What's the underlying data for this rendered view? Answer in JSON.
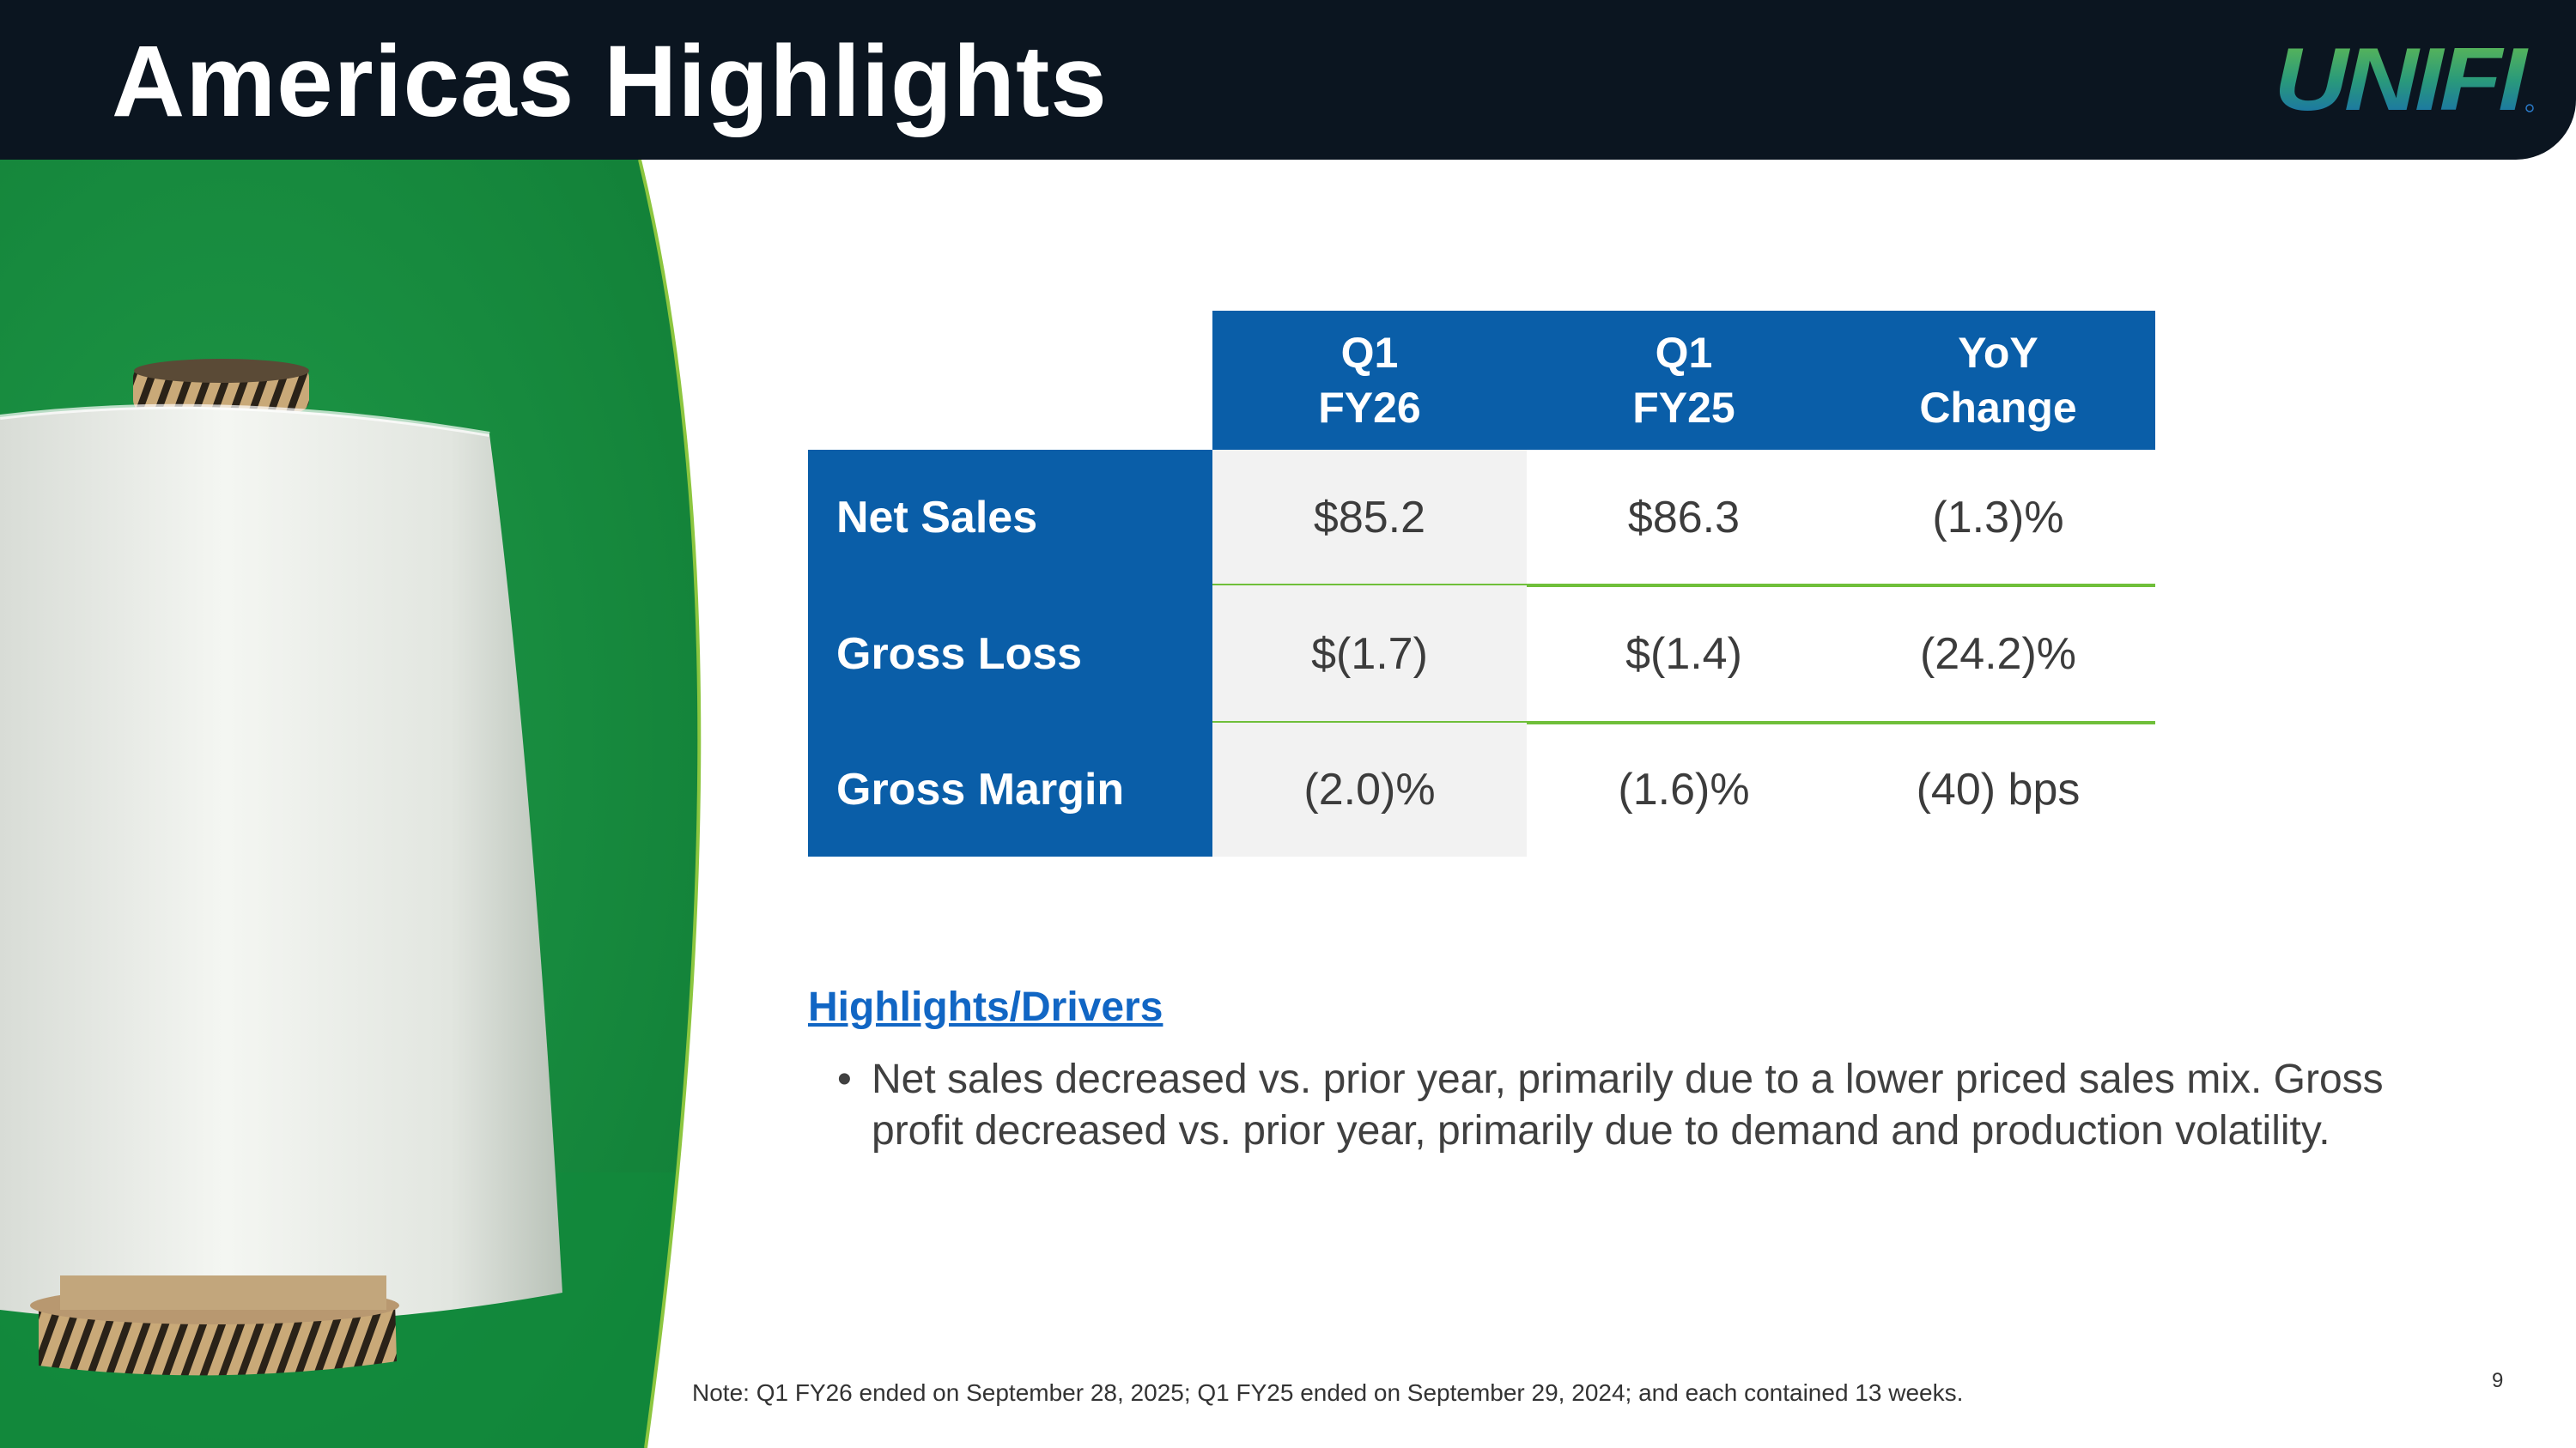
{
  "header": {
    "title": "Americas Highlights",
    "logo_text": "UNIFI",
    "background_color": "#0b1520"
  },
  "table": {
    "columns": [
      {
        "line1": "Q1",
        "line2": "FY26"
      },
      {
        "line1": "Q1",
        "line2": "FY25"
      },
      {
        "line1": "YoY",
        "line2": "Change"
      }
    ],
    "rows": [
      {
        "label": "Net Sales",
        "values": [
          "$85.2",
          "$86.3",
          "(1.3)%"
        ]
      },
      {
        "label": "Gross Loss",
        "values": [
          "$(1.7)",
          "$(1.4)",
          "(24.2)%"
        ]
      },
      {
        "label": "Gross Margin",
        "values": [
          "(2.0)%",
          "(1.6)%",
          "(40) bps"
        ]
      }
    ],
    "header_color": "#0a5ea8",
    "separator_color": "#6fbf3a"
  },
  "drivers": {
    "title": "Highlights/Drivers",
    "bullets": [
      "Net sales decreased vs. prior year, primarily due to a lower priced sales mix. Gross profit decreased vs. prior year, primarily due to demand and production volatility."
    ]
  },
  "footer": {
    "note": "Note: Q1 FY26 ended on September 28, 2025; Q1 FY25 ended on September 29, 2024; and each contained 13 weeks.",
    "page_number": "9"
  }
}
